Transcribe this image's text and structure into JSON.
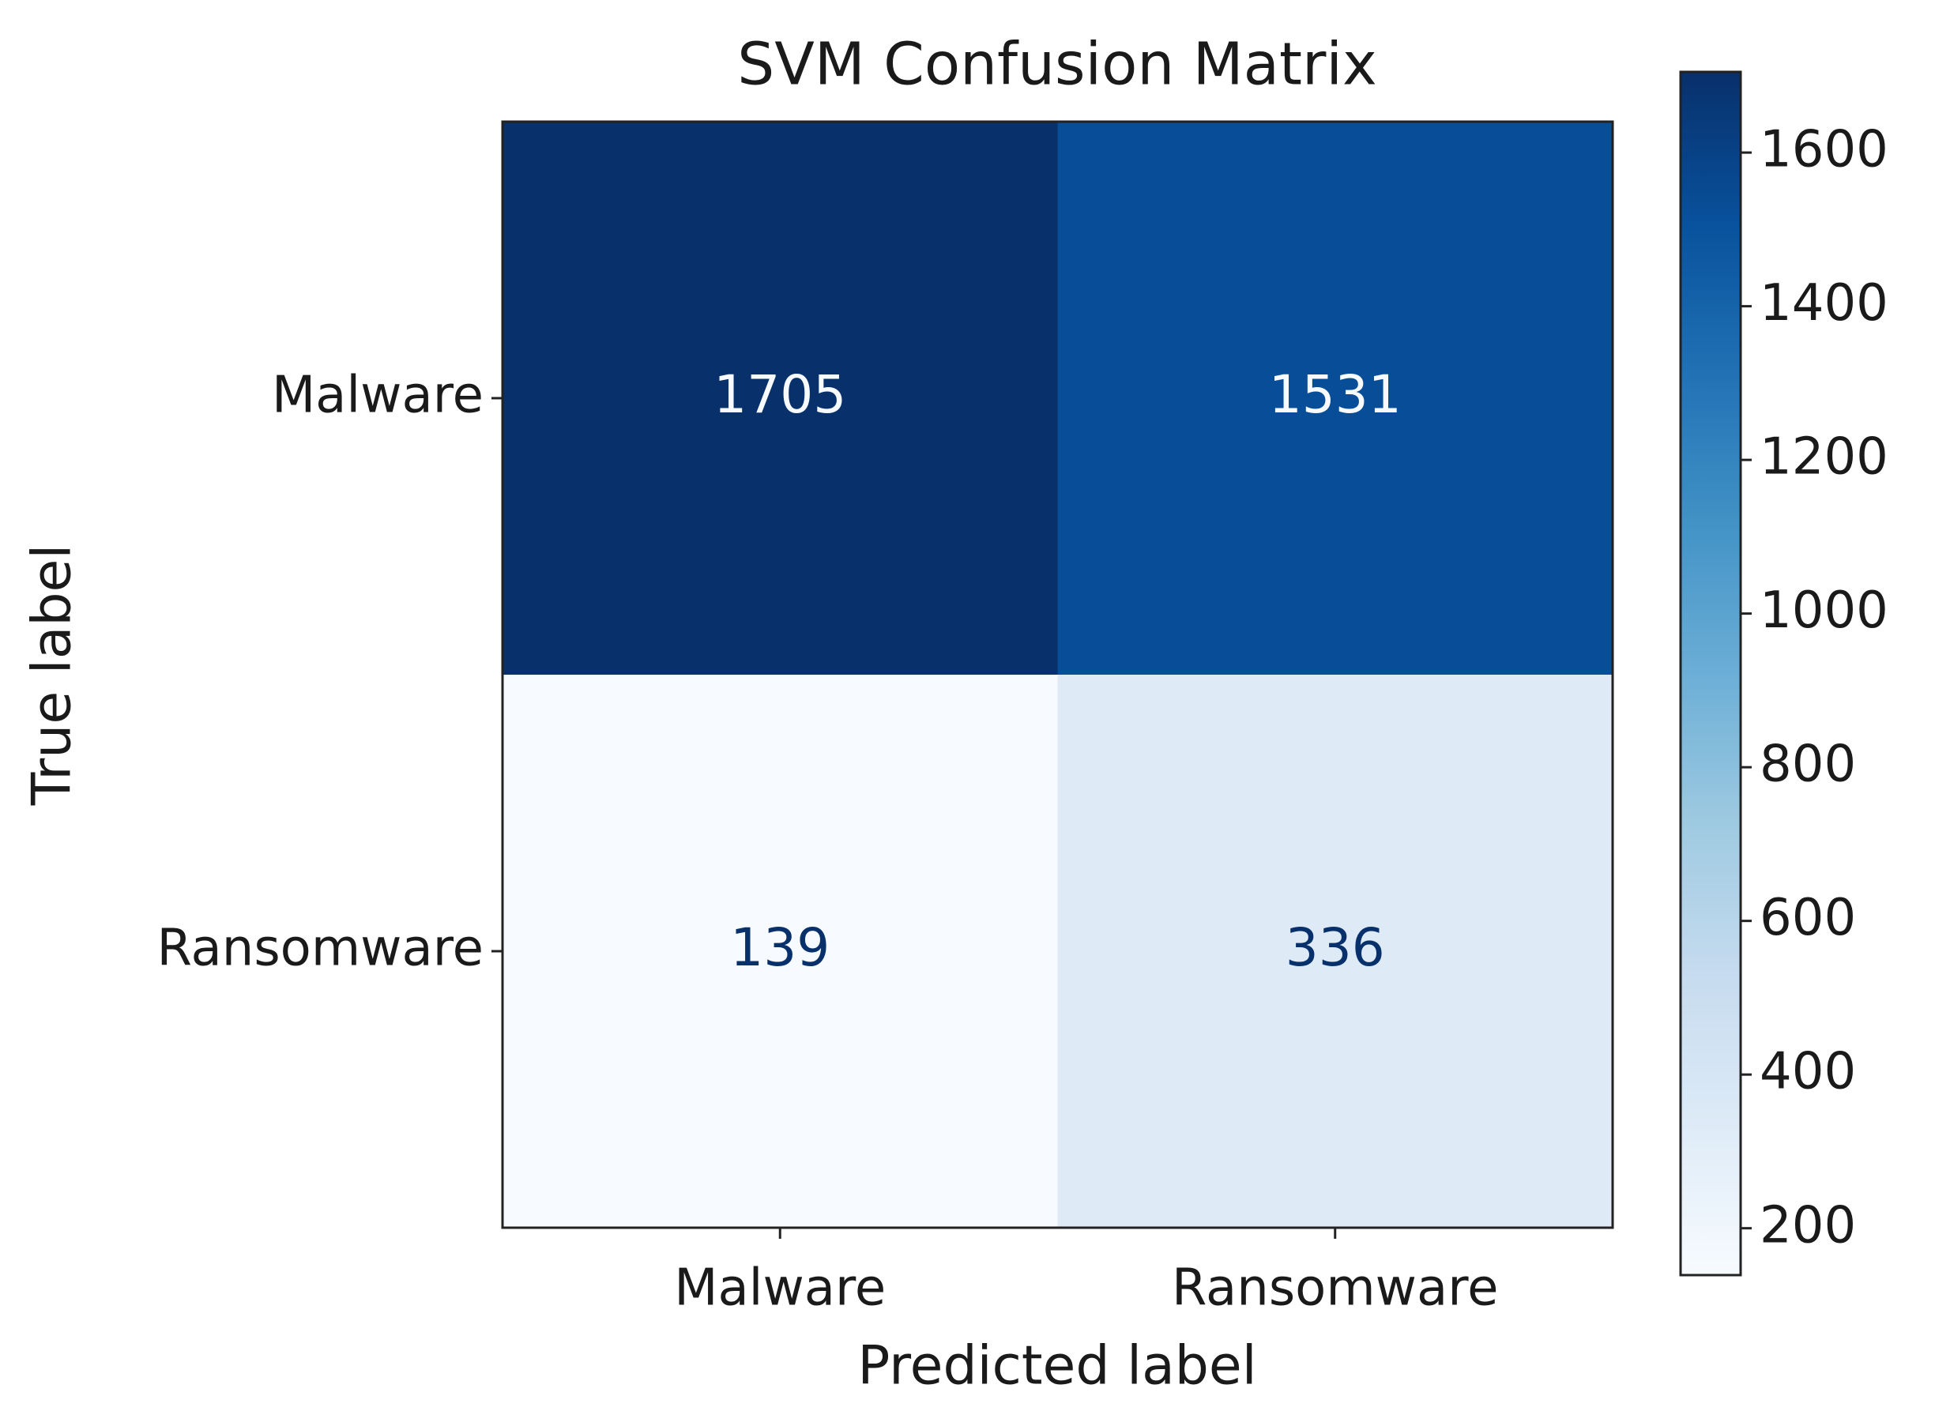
{
  "chart_data": {
    "type": "heatmap",
    "title": "SVM Confusion Matrix",
    "xlabel": "Predicted label",
    "ylabel": "True label",
    "x_categories": [
      "Malware",
      "Ransomware"
    ],
    "y_categories": [
      "Malware",
      "Ransomware"
    ],
    "values": [
      [
        1705,
        1531
      ],
      [
        139,
        336
      ]
    ],
    "colormap": "Blues",
    "clim": [
      139,
      1705
    ],
    "cticks": [
      200,
      400,
      600,
      800,
      1000,
      1200,
      1400,
      1600
    ]
  }
}
